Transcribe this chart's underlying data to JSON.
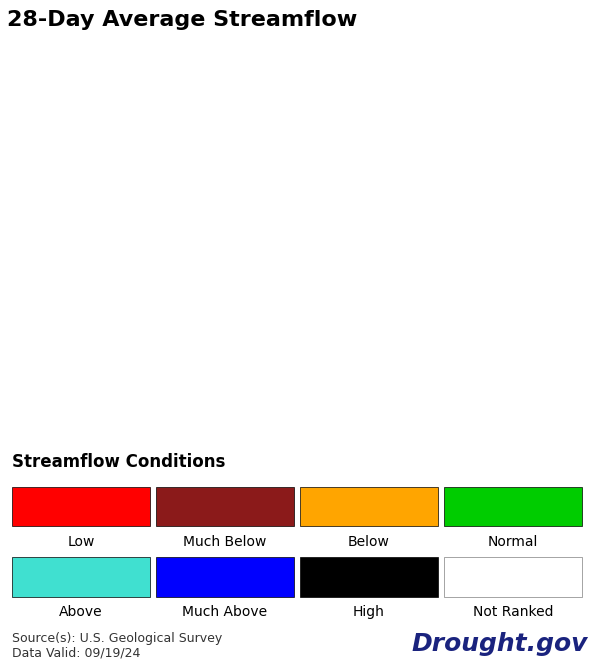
{
  "title": "28-Day Average Streamflow",
  "bg_color": "#ffffff",
  "map_bg": "#ffffff",
  "title_fontsize": 16,
  "title_bold": true,
  "legend_title": "Streamflow Conditions",
  "legend_title_fontsize": 12,
  "legend_title_bold": true,
  "legend_items_row1": [
    {
      "label": "Low",
      "color": "#ff0000"
    },
    {
      "label": "Much Below",
      "color": "#8b1a1a"
    },
    {
      "label": "Below",
      "color": "#ffa500"
    },
    {
      "label": "Normal",
      "color": "#00cc00"
    }
  ],
  "legend_items_row2": [
    {
      "label": "Above",
      "color": "#40e0d0"
    },
    {
      "label": "Much Above",
      "color": "#0000ff"
    },
    {
      "label": "High",
      "color": "#000000"
    },
    {
      "label": "Not Ranked",
      "color": "#ffffff"
    }
  ],
  "source_text": "Source(s): U.S. Geological Survey\nData Valid: 09/19/24",
  "source_fontsize": 9,
  "drought_text": "Drought.gov",
  "drought_fontsize": 18,
  "drought_color": "#1a237e",
  "state_border_color": "#000000",
  "county_border_color": "#cccccc",
  "dot_size": 40,
  "dot_alpha": 0.85,
  "colors": {
    "low": "#ff0000",
    "much_below": "#8b1a1a",
    "below": "#ffa500",
    "normal": "#00cc00",
    "above": "#40e0d0",
    "much_above": "#0000ff",
    "high": "#000000",
    "not_ranked": "#ffffff"
  }
}
